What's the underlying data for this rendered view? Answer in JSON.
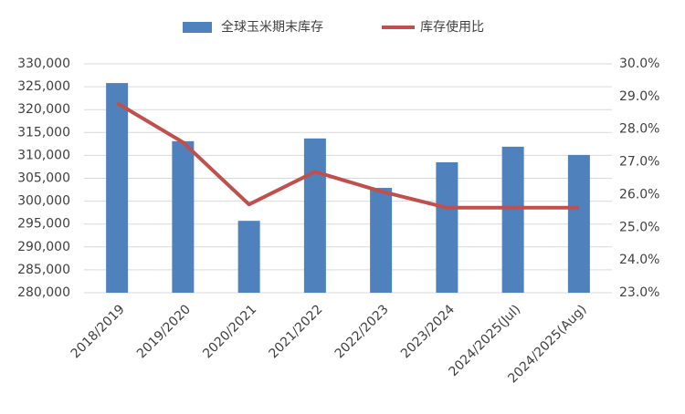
{
  "chart_data": {
    "type": "bar-line",
    "categories": [
      "2018/2019",
      "2019/2020",
      "2020/2021",
      "2021/2022",
      "2022/2023",
      "2023/2024",
      "2024/2025(Jul)",
      "2024/2025(Aug)"
    ],
    "series": [
      {
        "name": "全球玉米期末库存",
        "color": "#4f81bd",
        "type": "bar",
        "values": [
          325800,
          313100,
          295700,
          313700,
          302900,
          308500,
          311900,
          310100
        ]
      },
      {
        "name": "库存使用比",
        "color": "#c0504d",
        "type": "line",
        "axis": "y2",
        "values": [
          28.8,
          27.6,
          25.7,
          26.7,
          26.1,
          25.6,
          25.6,
          25.6
        ]
      }
    ],
    "ylim": [
      280000,
      330000
    ],
    "yticks": [
      {
        "value": 280000,
        "label": "280,000"
      },
      {
        "value": 285000,
        "label": "285,000"
      },
      {
        "value": 290000,
        "label": "290,000"
      },
      {
        "value": 295000,
        "label": "295,000"
      },
      {
        "value": 300000,
        "label": "300,000"
      },
      {
        "value": 305000,
        "label": "305,000"
      },
      {
        "value": 310000,
        "label": "310,000"
      },
      {
        "value": 315000,
        "label": "315,000"
      },
      {
        "value": 320000,
        "label": "320,000"
      },
      {
        "value": 325000,
        "label": "325,000"
      },
      {
        "value": 330000,
        "label": "330,000"
      }
    ],
    "y2lim": [
      23,
      30
    ],
    "y2ticks": [
      {
        "value": 23,
        "label": "23.0%"
      },
      {
        "value": 24,
        "label": "24.0%"
      },
      {
        "value": 25,
        "label": "25.0%"
      },
      {
        "value": 26,
        "label": "26.0%"
      },
      {
        "value": 27,
        "label": "27.0%"
      },
      {
        "value": 28,
        "label": "28.0%"
      },
      {
        "value": 29,
        "label": "29.0%"
      },
      {
        "value": 30,
        "label": "30.0%"
      }
    ],
    "grid": true,
    "legend": "top"
  }
}
